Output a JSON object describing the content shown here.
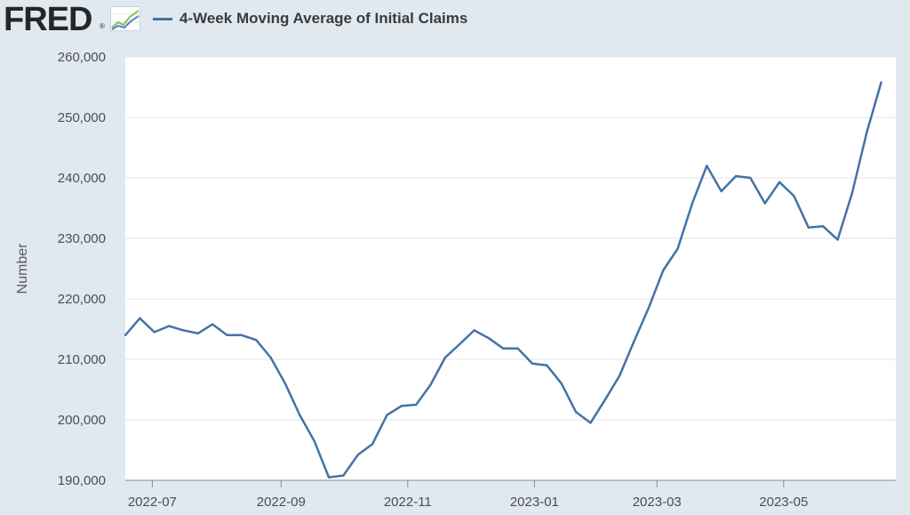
{
  "logo": {
    "text": "FRED",
    "reg": "®",
    "icon": "fred-graph-logo-icon"
  },
  "legend": {
    "label": "4-Week Moving Average of Initial Claims",
    "color": "#4572a7"
  },
  "chart_data": {
    "type": "line",
    "title": "",
    "xlabel": "",
    "ylabel": "Number",
    "ylim": [
      190000,
      260000
    ],
    "yticks": [
      190000,
      200000,
      210000,
      220000,
      230000,
      240000,
      250000,
      260000
    ],
    "ytick_labels": [
      "190,000",
      "200,000",
      "210,000",
      "220,000",
      "230,000",
      "240,000",
      "250,000",
      "260,000"
    ],
    "xlim": [
      "2022-06-18",
      "2023-06-24"
    ],
    "xticks": [
      "2022-07-01",
      "2022-09-01",
      "2022-11-01",
      "2023-01-01",
      "2023-03-01",
      "2023-05-01"
    ],
    "xtick_labels": [
      "2022-07",
      "2022-09",
      "2022-11",
      "2023-01",
      "2023-03",
      "2023-05"
    ],
    "grid": true,
    "series": [
      {
        "name": "4-Week Moving Average of Initial Claims",
        "color": "#4572a7",
        "x": [
          "2022-06-18",
          "2022-06-25",
          "2022-07-02",
          "2022-07-09",
          "2022-07-16",
          "2022-07-23",
          "2022-07-30",
          "2022-08-06",
          "2022-08-13",
          "2022-08-20",
          "2022-08-27",
          "2022-09-03",
          "2022-09-10",
          "2022-09-17",
          "2022-09-24",
          "2022-10-01",
          "2022-10-08",
          "2022-10-15",
          "2022-10-22",
          "2022-10-29",
          "2022-11-05",
          "2022-11-12",
          "2022-11-19",
          "2022-11-26",
          "2022-12-03",
          "2022-12-10",
          "2022-12-17",
          "2022-12-24",
          "2022-12-31",
          "2023-01-07",
          "2023-01-14",
          "2023-01-21",
          "2023-01-28",
          "2023-02-04",
          "2023-02-11",
          "2023-02-18",
          "2023-02-25",
          "2023-03-04",
          "2023-03-11",
          "2023-03-18",
          "2023-03-25",
          "2023-04-01",
          "2023-04-08",
          "2023-04-15",
          "2023-04-22",
          "2023-04-29",
          "2023-05-06",
          "2023-05-13",
          "2023-05-20",
          "2023-05-27",
          "2023-06-03",
          "2023-06-10",
          "2023-06-17"
        ],
        "values": [
          214000,
          216800,
          214500,
          215500,
          214800,
          214300,
          215800,
          214000,
          214000,
          213200,
          210300,
          206000,
          200800,
          196500,
          190500,
          190800,
          194200,
          196000,
          200800,
          202300,
          202500,
          205800,
          210300,
          212500,
          214800,
          213500,
          211800,
          211800,
          209300,
          209000,
          206000,
          201300,
          199500,
          203300,
          207300,
          213000,
          218500,
          224700,
          228300,
          235800,
          242000,
          237800,
          240300,
          240000,
          235800,
          239300,
          237000,
          231800,
          232000,
          229800,
          237500,
          247500,
          255800
        ]
      }
    ]
  }
}
